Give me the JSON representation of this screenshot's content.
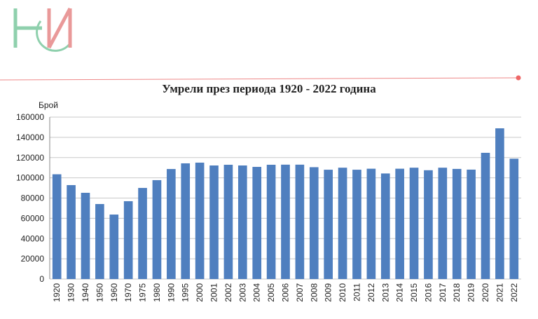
{
  "chart_data": {
    "type": "bar",
    "title": "Умрели през периода 1920 - 2022 година",
    "y_label": "Брой",
    "categories": [
      "1920",
      "1930",
      "1940",
      "1950",
      "1960",
      "1970",
      "1975",
      "1980",
      "1990",
      "1995",
      "2000",
      "2001",
      "2002",
      "2003",
      "2004",
      "2005",
      "2006",
      "2007",
      "2008",
      "2009",
      "2010",
      "2011",
      "2012",
      "2013",
      "2014",
      "2015",
      "2016",
      "2017",
      "2018",
      "2019",
      "2020",
      "2021",
      "2022"
    ],
    "values": [
      103500,
      92800,
      85200,
      74100,
      63700,
      76900,
      90000,
      97700,
      108700,
      114300,
      115000,
      112200,
      112900,
      112200,
      110800,
      112900,
      113000,
      113000,
      110500,
      108000,
      110000,
      108000,
      109000,
      104300,
      109000,
      110000,
      107500,
      110000,
      108800,
      108100,
      124700,
      148900,
      118900
    ],
    "color": "#4f7fbf",
    "ylim": [
      0,
      160000
    ],
    "yticks": [
      0,
      20000,
      40000,
      60000,
      80000,
      100000,
      120000,
      140000,
      160000
    ],
    "grid": true
  }
}
